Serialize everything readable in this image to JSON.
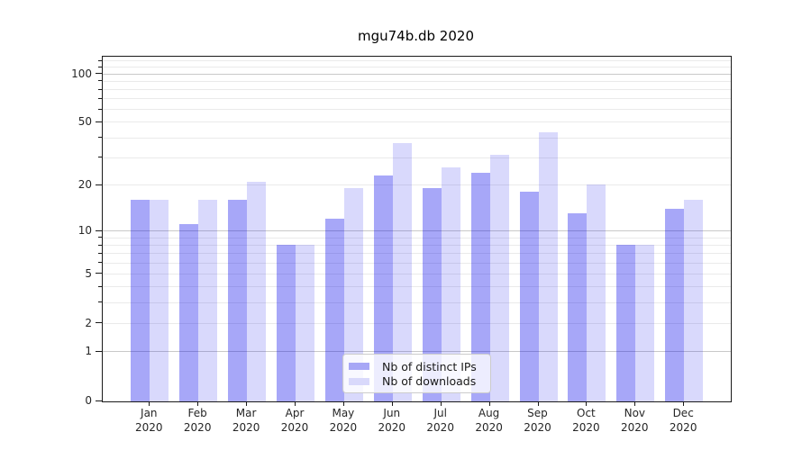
{
  "title": "mgu74b.db 2020",
  "chart_data": {
    "type": "bar",
    "title": "mgu74b.db 2020",
    "xlabel": "",
    "ylabel": "",
    "y_scale": "log1p",
    "ylim": [
      0,
      126
    ],
    "categories": [
      "Jan",
      "Feb",
      "Mar",
      "Apr",
      "May",
      "Jun",
      "Jul",
      "Aug",
      "Sep",
      "Oct",
      "Nov",
      "Dec"
    ],
    "x_tick_second_line": "2020",
    "series": [
      {
        "name": "Nb of distinct IPs",
        "legend_color": "#a7a7f6",
        "fill": "rgba(0,0,235,0.345)",
        "values": [
          16,
          11,
          16,
          8,
          12,
          23,
          19,
          24,
          18,
          13,
          8,
          14
        ]
      },
      {
        "name": "Nb of downloads",
        "legend_color": "#d9d9fb",
        "fill": "rgba(0,0,235,0.15)",
        "values": [
          16,
          16,
          21,
          8,
          19,
          37,
          26,
          31,
          43,
          20,
          8,
          16
        ]
      }
    ],
    "y_ticks": [
      0,
      1,
      2,
      5,
      10,
      20,
      50,
      100
    ],
    "major_gridlines": [
      1,
      10,
      100
    ],
    "minor_gridlines": [
      2,
      3,
      4,
      5,
      6,
      7,
      8,
      9,
      20,
      30,
      40,
      50,
      60,
      70,
      80,
      90,
      110,
      120
    ],
    "grid": true,
    "legend_position": "lower center"
  },
  "legend": {
    "items": [
      {
        "label": "Nb of distinct IPs"
      },
      {
        "label": "Nb of downloads"
      }
    ]
  }
}
